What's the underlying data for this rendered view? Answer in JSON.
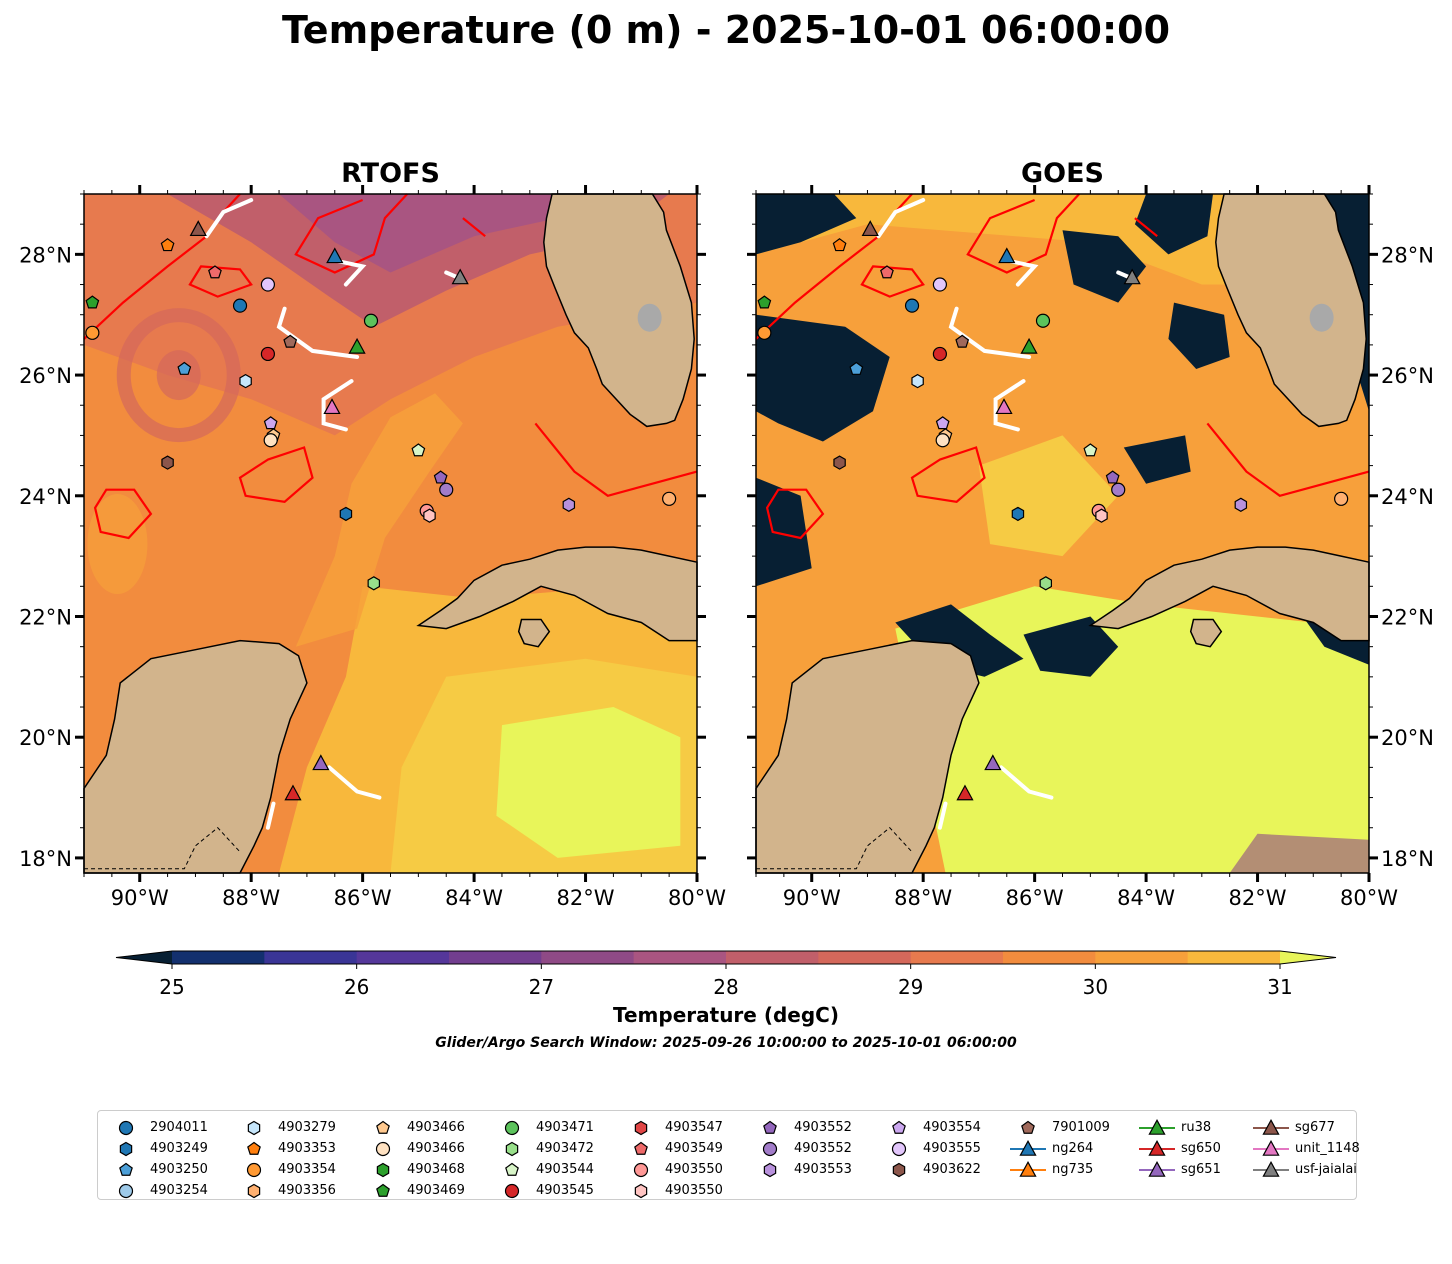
{
  "title": "Temperature (0 m) - 2025-10-01 06:00:00",
  "panels": [
    {
      "name": "rtofs",
      "title": "RTOFS"
    },
    {
      "name": "goes",
      "title": "GOES"
    }
  ],
  "map": {
    "lon_range": [
      -91,
      -80
    ],
    "lat_range": [
      17.75,
      29
    ],
    "lon_ticks": [
      "90°W",
      "88°W",
      "86°W",
      "84°W",
      "82°W",
      "80°W"
    ],
    "lat_ticks": [
      "28°N",
      "26°N",
      "24°N",
      "22°N",
      "20°N",
      "18°N"
    ]
  },
  "colorbar": {
    "title": "Temperature (degC)",
    "ticks": [
      "25",
      "26",
      "27",
      "28",
      "29",
      "30",
      "31"
    ],
    "range": [
      25,
      31
    ],
    "extend": "both",
    "colors": [
      "#071f33",
      "#13306e",
      "#3a3596",
      "#55379a",
      "#723e8f",
      "#8f4a86",
      "#a95581",
      "#c15f6a",
      "#d4685b",
      "#e77a4e",
      "#f28c3e",
      "#f7a03b",
      "#f8b83c",
      "#f6cb44",
      "#e8f55a"
    ]
  },
  "search_window": "Glider/Argo Search Window: 2025-09-26 10:00:00 to 2025-10-01 06:00:00",
  "legend": [
    {
      "label": "2904011",
      "marker": "circle",
      "color": "#1f77b4"
    },
    {
      "label": "4903249",
      "marker": "hexagon",
      "color": "#1f77b4"
    },
    {
      "label": "4903250",
      "marker": "pentagon",
      "color": "#4c9fd8"
    },
    {
      "label": "4903254",
      "marker": "circle",
      "color": "#9ecae9"
    },
    {
      "label": "4903279",
      "marker": "hexagon",
      "color": "#c6e6fb"
    },
    {
      "label": "4903353",
      "marker": "pentagon",
      "color": "#ff7f0e"
    },
    {
      "label": "4903354",
      "marker": "circle",
      "color": "#ff9933"
    },
    {
      "label": "4903356",
      "marker": "hexagon",
      "color": "#ffb070"
    },
    {
      "label": "4903466",
      "marker": "pentagon",
      "color": "#ffc98f"
    },
    {
      "label": "4903466",
      "marker": "circle",
      "color": "#ffe2c2"
    },
    {
      "label": "4903468",
      "marker": "hexagon",
      "color": "#2ca02c"
    },
    {
      "label": "4903469",
      "marker": "pentagon",
      "color": "#2ca02c"
    },
    {
      "label": "4903471",
      "marker": "circle",
      "color": "#5cc35c"
    },
    {
      "label": "4903472",
      "marker": "hexagon",
      "color": "#98df8a"
    },
    {
      "label": "4903544",
      "marker": "pentagon",
      "color": "#d8f5c8"
    },
    {
      "label": "4903545",
      "marker": "circle",
      "color": "#d62728"
    },
    {
      "label": "4903547",
      "marker": "hexagon",
      "color": "#e04545"
    },
    {
      "label": "4903549",
      "marker": "pentagon",
      "color": "#ee6a6a"
    },
    {
      "label": "4903550",
      "marker": "circle",
      "color": "#ff9896"
    },
    {
      "label": "4903550",
      "marker": "hexagon",
      "color": "#ffc4c2"
    },
    {
      "label": "4903552",
      "marker": "pentagon",
      "color": "#9467bd"
    },
    {
      "label": "4903552",
      "marker": "circle",
      "color": "#a27cc9"
    },
    {
      "label": "4903553",
      "marker": "hexagon",
      "color": "#b891dc"
    },
    {
      "label": "4903554",
      "marker": "pentagon",
      "color": "#cba7ef"
    },
    {
      "label": "4903555",
      "marker": "circle",
      "color": "#e2c6fb"
    },
    {
      "label": "4903622",
      "marker": "hexagon",
      "color": "#8c564b"
    },
    {
      "label": "7901009",
      "marker": "pentagon",
      "color": "#a0695b"
    },
    {
      "label": "ng264",
      "marker": "triangle",
      "color": "#1f77b4"
    },
    {
      "label": "ng735",
      "marker": "triangle",
      "color": "#ff7f0e"
    },
    {
      "label": "ru38",
      "marker": "triangle",
      "color": "#2ca02c"
    },
    {
      "label": "sg650",
      "marker": "triangle",
      "color": "#d62728"
    },
    {
      "label": "sg651",
      "marker": "triangle",
      "color": "#9467bd"
    },
    {
      "label": "sg677",
      "marker": "triangle",
      "color": "#8c564b"
    },
    {
      "label": "unit_1148",
      "marker": "triangle",
      "color": "#e377c2"
    },
    {
      "label": "usf-jaialai",
      "marker": "triangle",
      "color": "#7f7f7f"
    }
  ],
  "platforms": [
    {
      "id": "4903250",
      "lon": -89.2,
      "lat": 26.1,
      "marker": "pentagon",
      "color": "#4c9fd8"
    },
    {
      "id": "2904011",
      "lon": -88.2,
      "lat": 27.15,
      "marker": "circle",
      "color": "#1f77b4"
    },
    {
      "id": "4903279",
      "lon": -88.1,
      "lat": 25.9,
      "marker": "hexagon",
      "color": "#c6e6fb"
    },
    {
      "id": "4903555",
      "lon": -87.7,
      "lat": 27.5,
      "marker": "circle",
      "color": "#e2c6fb"
    },
    {
      "id": "4903545",
      "lon": -87.7,
      "lat": 26.35,
      "marker": "circle",
      "color": "#d62728"
    },
    {
      "id": "7901009",
      "lon": -87.3,
      "lat": 26.55,
      "marker": "pentagon",
      "color": "#a0695b"
    },
    {
      "id": "4903549",
      "lon": -88.65,
      "lat": 27.7,
      "marker": "pentagon",
      "color": "#ee6a6a"
    },
    {
      "id": "4903353",
      "lon": -89.5,
      "lat": 28.15,
      "marker": "pentagon",
      "color": "#ff7f0e"
    },
    {
      "id": "4903469",
      "lon": -90.85,
      "lat": 27.2,
      "marker": "pentagon",
      "color": "#2ca02c"
    },
    {
      "id": "4903354",
      "lon": -90.85,
      "lat": 26.7,
      "marker": "circle",
      "color": "#ff9933"
    },
    {
      "id": "4903622",
      "lon": -89.5,
      "lat": 24.55,
      "marker": "hexagon",
      "color": "#8c564b"
    },
    {
      "id": "4903554",
      "lon": -87.65,
      "lat": 25.2,
      "marker": "pentagon",
      "color": "#cba7ef"
    },
    {
      "id": "4903466",
      "lon": -87.6,
      "lat": 25.0,
      "marker": "pentagon",
      "color": "#ffc98f"
    },
    {
      "id": "4903466",
      "lon": -87.65,
      "lat": 24.92,
      "marker": "circle",
      "color": "#ffe2c2"
    },
    {
      "id": "4903471",
      "lon": -85.85,
      "lat": 26.9,
      "marker": "circle",
      "color": "#5cc35c"
    },
    {
      "id": "4903249",
      "lon": -86.3,
      "lat": 23.7,
      "marker": "hexagon",
      "color": "#1f77b4"
    },
    {
      "id": "4903472",
      "lon": -85.8,
      "lat": 22.55,
      "marker": "hexagon",
      "color": "#98df8a"
    },
    {
      "id": "4903544",
      "lon": -85.0,
      "lat": 24.75,
      "marker": "pentagon",
      "color": "#d8f5c8"
    },
    {
      "id": "4903552",
      "lon": -84.6,
      "lat": 24.3,
      "marker": "pentagon",
      "color": "#9467bd"
    },
    {
      "id": "4903552",
      "lon": -84.5,
      "lat": 24.1,
      "marker": "circle",
      "color": "#a27cc9"
    },
    {
      "id": "4903550",
      "lon": -84.85,
      "lat": 23.75,
      "marker": "circle",
      "color": "#ff9896"
    },
    {
      "id": "4903550",
      "lon": -84.8,
      "lat": 23.67,
      "marker": "hexagon",
      "color": "#ffc4c2"
    },
    {
      "id": "4903553",
      "lon": -82.3,
      "lat": 23.85,
      "marker": "hexagon",
      "color": "#b891dc"
    },
    {
      "id": "4903356",
      "lon": -80.5,
      "lat": 23.95,
      "marker": "circle",
      "color": "#ffb070"
    },
    {
      "id": "sg677",
      "lon": -88.95,
      "lat": 28.4,
      "marker": "triangle",
      "color": "#8c564b"
    },
    {
      "id": "ng264",
      "lon": -86.5,
      "lat": 27.95,
      "marker": "triangle",
      "color": "#1f77b4"
    },
    {
      "id": "usf-jaialai",
      "lon": -84.25,
      "lat": 27.6,
      "marker": "triangle",
      "color": "#7f7f7f"
    },
    {
      "id": "ru38",
      "lon": -86.1,
      "lat": 26.45,
      "marker": "triangle",
      "color": "#2ca02c"
    },
    {
      "id": "unit_1148",
      "lon": -86.55,
      "lat": 25.45,
      "marker": "triangle",
      "color": "#e377c2"
    },
    {
      "id": "sg651",
      "lon": -86.75,
      "lat": 19.55,
      "marker": "triangle",
      "color": "#9467bd"
    },
    {
      "id": "sg650",
      "lon": -87.25,
      "lat": 19.05,
      "marker": "triangle",
      "color": "#d62728"
    }
  ]
}
